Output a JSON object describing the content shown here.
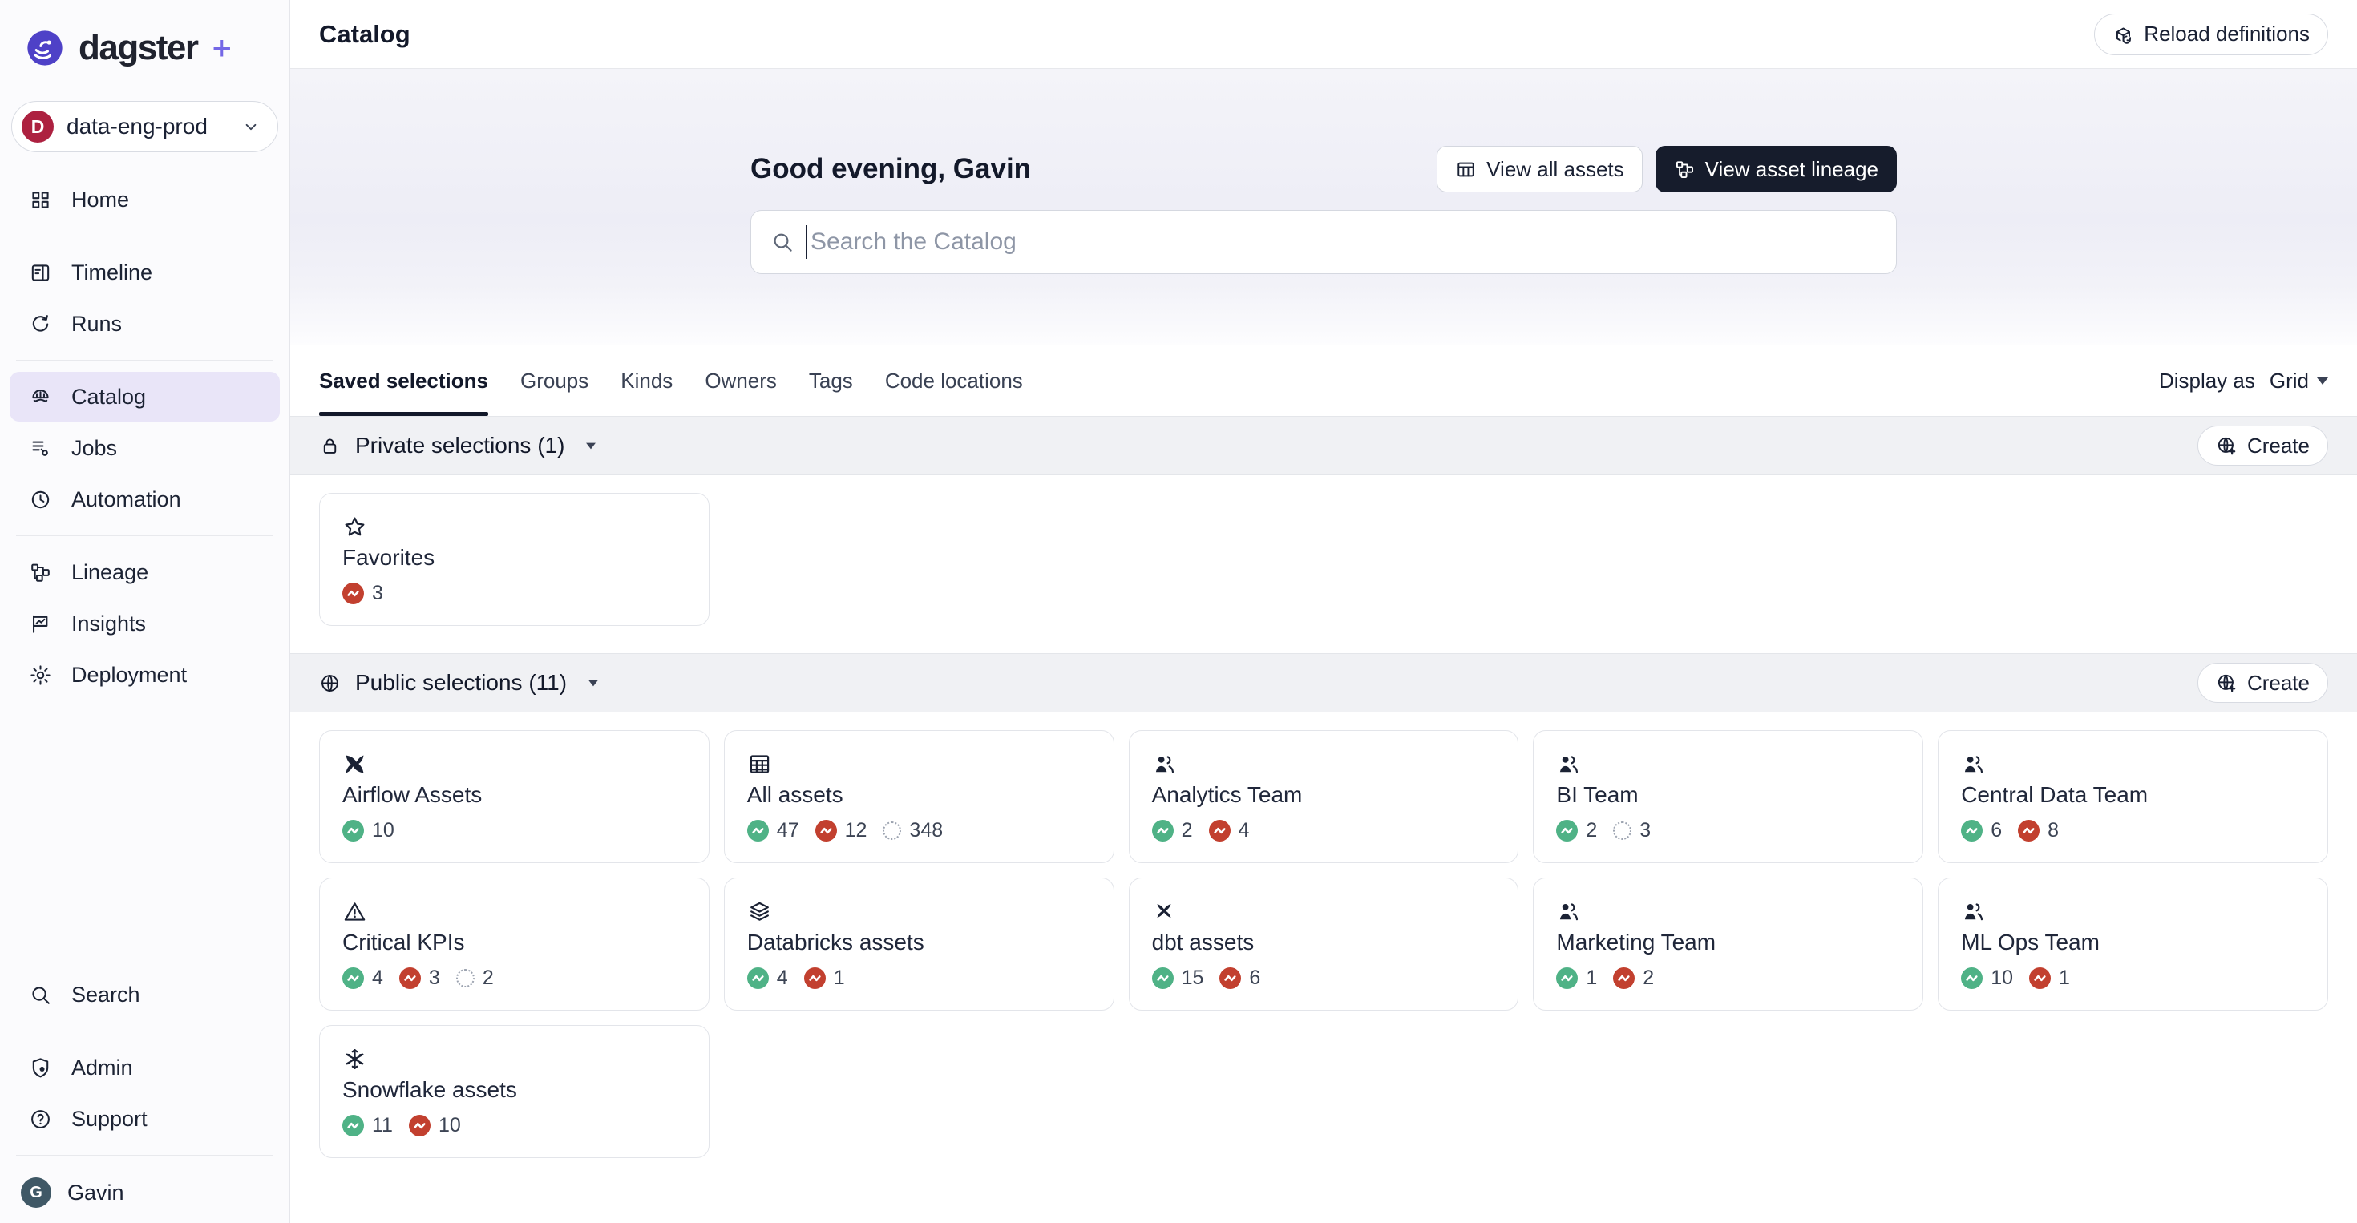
{
  "brand": {
    "name": "dagster",
    "plus": "+"
  },
  "deployment": {
    "label": "data-eng-prod",
    "avatar_letter": "D"
  },
  "sidebar": {
    "groups": [
      {
        "items": [
          {
            "label": "Home",
            "icon": "home"
          }
        ]
      },
      {
        "items": [
          {
            "label": "Timeline",
            "icon": "timeline"
          },
          {
            "label": "Runs",
            "icon": "runs"
          }
        ]
      },
      {
        "items": [
          {
            "label": "Catalog",
            "icon": "catalog",
            "active": true
          },
          {
            "label": "Jobs",
            "icon": "jobs"
          },
          {
            "label": "Automation",
            "icon": "automation"
          }
        ]
      },
      {
        "items": [
          {
            "label": "Lineage",
            "icon": "lineage"
          },
          {
            "label": "Insights",
            "icon": "insights"
          },
          {
            "label": "Deployment",
            "icon": "deployment"
          }
        ]
      }
    ],
    "footer_groups": [
      {
        "items": [
          {
            "label": "Search",
            "icon": "search"
          }
        ]
      },
      {
        "items": [
          {
            "label": "Admin",
            "icon": "admin"
          },
          {
            "label": "Support",
            "icon": "support"
          }
        ]
      }
    ],
    "user": {
      "name": "Gavin",
      "avatar_letter": "G"
    }
  },
  "header": {
    "title": "Catalog",
    "reload_label": "Reload definitions"
  },
  "hero": {
    "greeting": "Good evening, Gavin",
    "view_all_assets_label": "View all assets",
    "view_asset_lineage_label": "View asset lineage",
    "search_placeholder": "Search the Catalog"
  },
  "tabs": [
    {
      "label": "Saved selections",
      "active": true
    },
    {
      "label": "Groups"
    },
    {
      "label": "Kinds"
    },
    {
      "label": "Owners"
    },
    {
      "label": "Tags"
    },
    {
      "label": "Code locations"
    }
  ],
  "display_as": {
    "label": "Display as",
    "value": "Grid"
  },
  "sections": [
    {
      "id": "private-selections",
      "icon": "lock",
      "title": "Private selections (1)",
      "create_label": "Create",
      "cards": [
        {
          "title": "Favorites",
          "icon": "star",
          "counts": [
            {
              "type": "failed",
              "value": "3"
            }
          ]
        }
      ]
    },
    {
      "id": "public-selections",
      "icon": "globe",
      "title": "Public selections (11)",
      "create_label": "Create",
      "cards": [
        {
          "title": "Airflow Assets",
          "icon": "airflow",
          "counts": [
            {
              "type": "success",
              "value": "10"
            }
          ]
        },
        {
          "title": "All assets",
          "icon": "grid-table",
          "counts": [
            {
              "type": "success",
              "value": "47"
            },
            {
              "type": "failed",
              "value": "12"
            },
            {
              "type": "never",
              "value": "348"
            }
          ]
        },
        {
          "title": "Analytics Team",
          "icon": "people",
          "counts": [
            {
              "type": "success",
              "value": "2"
            },
            {
              "type": "failed",
              "value": "4"
            }
          ]
        },
        {
          "title": "BI Team",
          "icon": "people",
          "counts": [
            {
              "type": "success",
              "value": "2"
            },
            {
              "type": "never",
              "value": "3"
            }
          ]
        },
        {
          "title": "Central Data Team",
          "icon": "people",
          "counts": [
            {
              "type": "success",
              "value": "6"
            },
            {
              "type": "failed",
              "value": "8"
            }
          ]
        },
        {
          "title": "Critical KPIs",
          "icon": "warning",
          "counts": [
            {
              "type": "success",
              "value": "4"
            },
            {
              "type": "failed",
              "value": "3"
            },
            {
              "type": "never",
              "value": "2"
            }
          ]
        },
        {
          "title": "Databricks assets",
          "icon": "layers",
          "counts": [
            {
              "type": "success",
              "value": "4"
            },
            {
              "type": "failed",
              "value": "1"
            }
          ]
        },
        {
          "title": "dbt assets",
          "icon": "dbt",
          "counts": [
            {
              "type": "success",
              "value": "15"
            },
            {
              "type": "failed",
              "value": "6"
            }
          ]
        },
        {
          "title": "Marketing Team",
          "icon": "people",
          "counts": [
            {
              "type": "success",
              "value": "1"
            },
            {
              "type": "failed",
              "value": "2"
            }
          ]
        },
        {
          "title": "ML Ops Team",
          "icon": "people",
          "counts": [
            {
              "type": "success",
              "value": "10"
            },
            {
              "type": "failed",
              "value": "1"
            }
          ]
        },
        {
          "title": "Snowflake assets",
          "icon": "snowflake",
          "counts": [
            {
              "type": "success",
              "value": "11"
            },
            {
              "type": "failed",
              "value": "10"
            }
          ]
        }
      ]
    }
  ],
  "colors": {
    "accent_purple": "#7467E6",
    "logo_purple": "#4E41C7",
    "active_nav_bg": "#E9E5F8",
    "status_success": "#4FB286",
    "status_failed": "#C2402F",
    "dark_button_bg": "#161C2C",
    "deployment_avatar_bg": "#AD2140",
    "user_avatar_bg": "#3F5866"
  }
}
